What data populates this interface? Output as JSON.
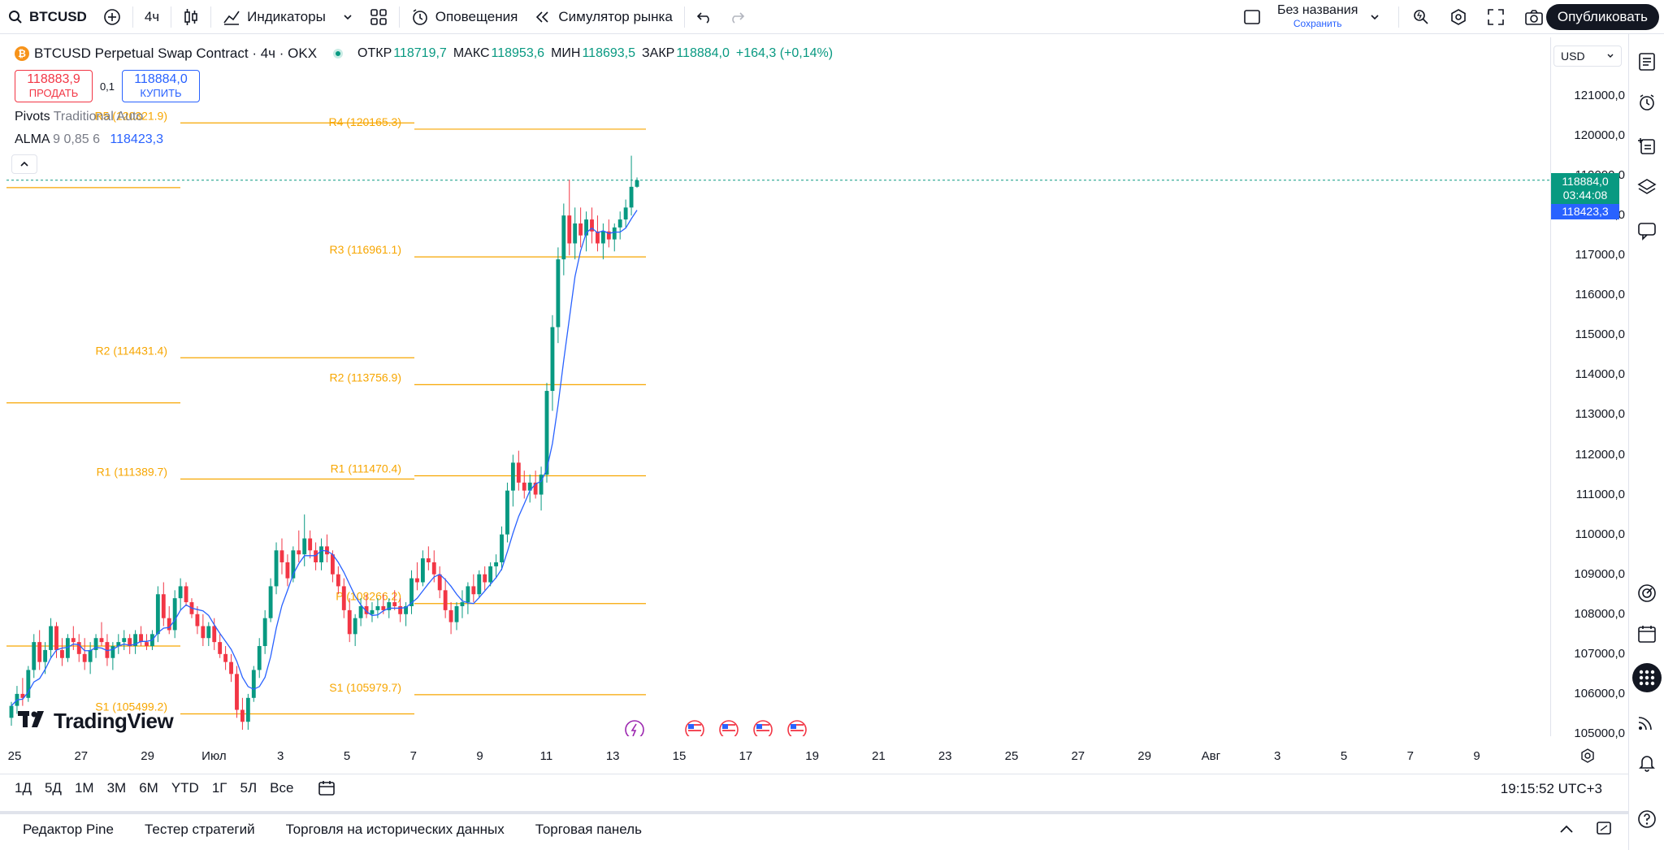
{
  "toolbar": {
    "symbol": "BTCUSD",
    "interval": "4ч",
    "indicators_label": "Индикаторы",
    "alerts_label": "Оповещения",
    "replay_label": "Симулятор рынка",
    "layout_name": "Без названия",
    "save_label": "Сохранить",
    "publish_label": "Опубликовать"
  },
  "legend": {
    "title": "BTCUSD Perpetual Swap Contract · 4ч · OKX",
    "btc_glyph": "₿",
    "open_label": "ОТКР",
    "open": "118719,7",
    "high_label": "МАКС",
    "high": "118953,6",
    "low_label": "МИН",
    "low": "118693,5",
    "close_label": "ЗАКР",
    "close": "118884,0",
    "change": "+164,3 (+0,14%)"
  },
  "trade": {
    "sell_price": "118883,9",
    "sell_label": "ПРОДАТЬ",
    "spread": "0,1",
    "buy_price": "118884,0",
    "buy_label": "КУПИТЬ"
  },
  "indicators": {
    "pivots_name": "Pivots",
    "pivots_params": "Traditional Auto",
    "alma_name": "ALMA",
    "alma_params": "9 0,85 6",
    "alma_value": "118423,3"
  },
  "logo_text": "TradingView",
  "price_scale": {
    "currency": "USD",
    "ticks": [
      "121000,0",
      "120000,0",
      "119000,0",
      "118000,0",
      "117000,0",
      "116000,0",
      "115000,0",
      "114000,0",
      "113000,0",
      "112000,0",
      "111000,0",
      "110000,0",
      "109000,0",
      "108000,0",
      "107000,0",
      "106000,0",
      "105000,0"
    ],
    "last_price": "118884,0",
    "countdown": "03:44:08",
    "alma_tag": "118423,3"
  },
  "time_axis": [
    "25",
    "27",
    "29",
    "Июл",
    "3",
    "5",
    "7",
    "9",
    "11",
    "13",
    "15",
    "17",
    "19",
    "21",
    "23",
    "25",
    "27",
    "29",
    "Авг",
    "3",
    "5",
    "7",
    "9"
  ],
  "range_bar": {
    "items": [
      "1Д",
      "5Д",
      "1М",
      "3М",
      "6М",
      "YTD",
      "1Г",
      "5Л",
      "Все"
    ],
    "clock": "19:15:52 UTC+3"
  },
  "bottom_tabs": [
    "Редактор Pine",
    "Тестер стратегий",
    "Торговля на исторических данных",
    "Торговая панель"
  ],
  "colors": {
    "up": "#089981",
    "down": "#f23645",
    "pivot": "#f7a600",
    "alma": "#2962ff"
  },
  "chart_data": {
    "type": "candlestick",
    "price_range": [
      104800,
      121600
    ],
    "pivots": [
      {
        "label": "R5 (120321.9)",
        "value": 120321.9,
        "segment": 1
      },
      {
        "label": "R2 (114431.4)",
        "value": 114431.4,
        "segment": 1
      },
      {
        "label": "R1 (111389.7)",
        "value": 111389.7,
        "segment": 1
      },
      {
        "label": "S1 (105499.2)",
        "value": 105499.2,
        "segment": 1
      },
      {
        "label": "R4 (120165.3)",
        "value": 120165.3,
        "segment": 2
      },
      {
        "label": "R3 (116961.1)",
        "value": 116961.1,
        "segment": 2
      },
      {
        "label": "R2 (113756.9)",
        "value": 113756.9,
        "segment": 2
      },
      {
        "label": "R1 (111470.4)",
        "value": 111470.4,
        "segment": 2
      },
      {
        "label": "P (108266.2)",
        "value": 108266.2,
        "segment": 2
      },
      {
        "label": "S1 (105979.7)",
        "value": 105979.7,
        "segment": 2
      }
    ],
    "candles": [
      [
        105400,
        105800,
        105200,
        105700
      ],
      [
        105700,
        106200,
        105500,
        106000
      ],
      [
        106000,
        106400,
        105700,
        105900
      ],
      [
        105900,
        106700,
        105800,
        106600
      ],
      [
        106600,
        107500,
        106400,
        107300
      ],
      [
        107300,
        107600,
        106600,
        106800
      ],
      [
        106800,
        107300,
        106500,
        107100
      ],
      [
        107100,
        107900,
        106900,
        107700
      ],
      [
        107700,
        107800,
        106900,
        107100
      ],
      [
        107100,
        107400,
        106700,
        106900
      ],
      [
        106900,
        107500,
        106800,
        107400
      ],
      [
        107400,
        107700,
        107100,
        107300
      ],
      [
        107300,
        107500,
        106800,
        107000
      ],
      [
        107000,
        107400,
        106600,
        106800
      ],
      [
        106800,
        107300,
        106500,
        107100
      ],
      [
        107100,
        107500,
        106900,
        107400
      ],
      [
        107400,
        107800,
        107200,
        107300
      ],
      [
        107300,
        107500,
        106700,
        106900
      ],
      [
        106900,
        107300,
        106600,
        107200
      ],
      [
        107200,
        107500,
        107000,
        107300
      ],
      [
        107300,
        107600,
        107100,
        107400
      ],
      [
        107400,
        107500,
        107000,
        107200
      ],
      [
        107200,
        107600,
        107000,
        107500
      ],
      [
        107500,
        107700,
        107200,
        107300
      ],
      [
        107300,
        107500,
        107100,
        107200
      ],
      [
        107200,
        107600,
        107100,
        107500
      ],
      [
        107500,
        108700,
        107300,
        108500
      ],
      [
        108500,
        108800,
        107700,
        107900
      ],
      [
        107900,
        108200,
        107500,
        107600
      ],
      [
        107600,
        108600,
        107400,
        108400
      ],
      [
        108400,
        108900,
        108100,
        108700
      ],
      [
        108700,
        108800,
        108200,
        108300
      ],
      [
        108300,
        108400,
        107900,
        108000
      ],
      [
        108000,
        108200,
        107500,
        107700
      ],
      [
        107700,
        108000,
        107200,
        107400
      ],
      [
        107400,
        107800,
        107200,
        107700
      ],
      [
        107700,
        107900,
        107100,
        107300
      ],
      [
        107300,
        107500,
        106900,
        107000
      ],
      [
        107000,
        107200,
        106600,
        106800
      ],
      [
        106800,
        107000,
        106300,
        106500
      ],
      [
        106500,
        106700,
        105400,
        105600
      ],
      [
        105600,
        105900,
        105100,
        105300
      ],
      [
        105300,
        106000,
        105100,
        105900
      ],
      [
        105900,
        106700,
        105800,
        106600
      ],
      [
        106600,
        107400,
        106400,
        107200
      ],
      [
        107200,
        108100,
        107000,
        107900
      ],
      [
        107900,
        108900,
        107800,
        108700
      ],
      [
        108700,
        109800,
        108500,
        109600
      ],
      [
        109600,
        109900,
        109000,
        109300
      ],
      [
        109300,
        109500,
        108700,
        108900
      ],
      [
        108900,
        109700,
        108800,
        109600
      ],
      [
        109600,
        110100,
        109300,
        109500
      ],
      [
        109500,
        110500,
        109200,
        109900
      ],
      [
        109900,
        110100,
        109400,
        109600
      ],
      [
        109600,
        109800,
        109100,
        109300
      ],
      [
        109300,
        109900,
        109100,
        109700
      ],
      [
        109700,
        110000,
        109300,
        109500
      ],
      [
        109500,
        109600,
        108800,
        109000
      ],
      [
        109000,
        109200,
        108500,
        108700
      ],
      [
        108700,
        108900,
        107900,
        108100
      ],
      [
        108100,
        108400,
        107300,
        107500
      ],
      [
        107500,
        108000,
        107200,
        107900
      ],
      [
        107900,
        108400,
        107700,
        108200
      ],
      [
        108200,
        108500,
        107900,
        108000
      ],
      [
        108000,
        108300,
        107800,
        108100
      ],
      [
        108100,
        108400,
        107900,
        108200
      ],
      [
        108200,
        108500,
        108000,
        108100
      ],
      [
        108100,
        108400,
        107900,
        108300
      ],
      [
        108300,
        108600,
        108100,
        108200
      ],
      [
        108200,
        108400,
        107800,
        108000
      ],
      [
        108000,
        108300,
        107700,
        108200
      ],
      [
        108200,
        109100,
        108000,
        108900
      ],
      [
        108900,
        109300,
        108600,
        108800
      ],
      [
        108800,
        109600,
        108700,
        109400
      ],
      [
        109400,
        109700,
        109100,
        109300
      ],
      [
        109300,
        109600,
        108800,
        109000
      ],
      [
        109000,
        109200,
        108400,
        108600
      ],
      [
        108600,
        108900,
        107900,
        108100
      ],
      [
        108100,
        108300,
        107500,
        107800
      ],
      [
        107800,
        108300,
        107600,
        108200
      ],
      [
        108200,
        108600,
        107900,
        108300
      ],
      [
        108300,
        108800,
        108000,
        108700
      ],
      [
        108700,
        109000,
        108300,
        108500
      ],
      [
        108500,
        109100,
        108400,
        109000
      ],
      [
        109000,
        109200,
        108600,
        108800
      ],
      [
        108800,
        109300,
        108700,
        109200
      ],
      [
        109200,
        109500,
        108900,
        109300
      ],
      [
        109300,
        110200,
        109100,
        110000
      ],
      [
        110000,
        111300,
        109800,
        111100
      ],
      [
        111100,
        112000,
        110700,
        111800
      ],
      [
        111800,
        112100,
        111100,
        111300
      ],
      [
        111300,
        111600,
        110900,
        111100
      ],
      [
        111100,
        111500,
        110800,
        111300
      ],
      [
        111300,
        111600,
        110900,
        111000
      ],
      [
        111000,
        111700,
        110600,
        111500
      ],
      [
        111500,
        113800,
        111300,
        113600
      ],
      [
        113600,
        115500,
        113100,
        115200
      ],
      [
        115200,
        117200,
        114800,
        116900
      ],
      [
        116900,
        118300,
        116500,
        118000
      ],
      [
        118000,
        118900,
        117000,
        117300
      ],
      [
        117300,
        118200,
        116900,
        117800
      ],
      [
        117800,
        118200,
        117200,
        117500
      ],
      [
        117500,
        118100,
        117100,
        117900
      ],
      [
        117900,
        118200,
        117300,
        117600
      ],
      [
        117600,
        118000,
        117100,
        117300
      ],
      [
        117300,
        117800,
        116900,
        117600
      ],
      [
        117600,
        117900,
        117200,
        117400
      ],
      [
        117400,
        117800,
        117100,
        117700
      ],
      [
        117700,
        118100,
        117400,
        117900
      ],
      [
        117900,
        118400,
        117700,
        118200
      ],
      [
        118200,
        119500,
        118000,
        118720
      ],
      [
        118720,
        118953,
        118693,
        118884
      ]
    ]
  }
}
